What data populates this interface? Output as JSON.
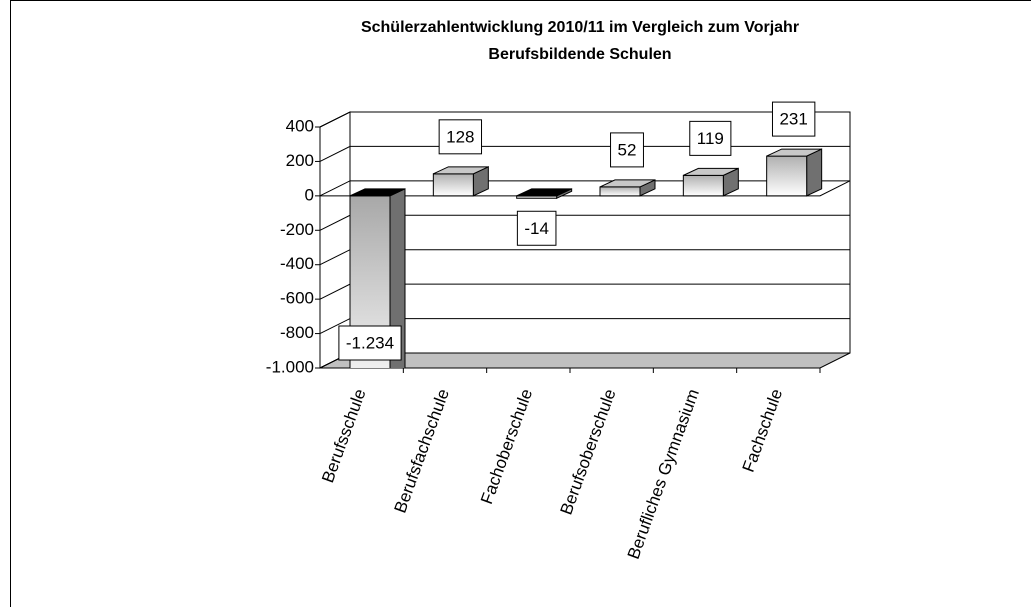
{
  "chart_data": {
    "type": "bar3d",
    "title": "Schülerzahlentwicklung 2010/11 im Vergleich zum Vorjahr",
    "subtitle": "Berufsbildende Schulen",
    "categories": [
      "Berufsschule",
      "Berufsfachschule",
      "Fachoberschule",
      "Berufsoberschule",
      "Berufliches Gymnasium",
      "Fachschule"
    ],
    "values": [
      -1234,
      128,
      -14,
      52,
      119,
      231
    ],
    "value_labels": [
      "-1.234",
      "128",
      "-14",
      "52",
      "119",
      "231"
    ],
    "ylim": [
      -1000,
      400
    ],
    "yticks": [
      400,
      200,
      0,
      -200,
      -400,
      -600,
      -800,
      {
        "value": -1000,
        "label": "-1.000"
      }
    ],
    "grid": true
  }
}
